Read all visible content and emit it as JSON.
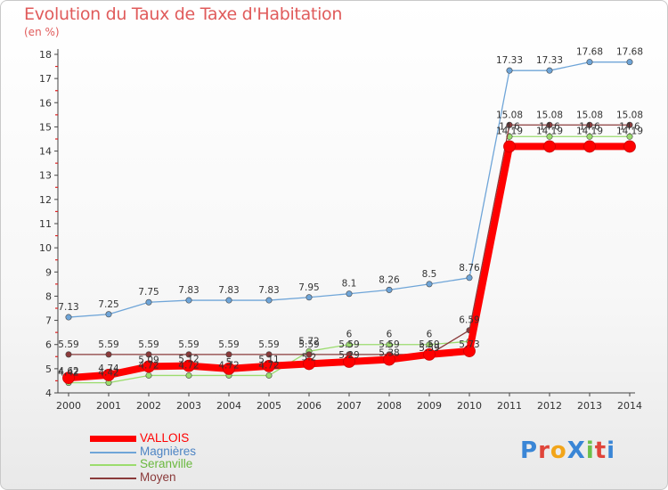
{
  "title": "Evolution du Taux de Taxe d'Habitation",
  "units": "(en %)",
  "logo": {
    "text": "ProXiti",
    "colors": [
      "#3a86d6",
      "#e0453a",
      "#f2a51a",
      "#3a86d6",
      "#6cc04a",
      "#e0453a",
      "#3a86d6"
    ]
  },
  "chart_data": {
    "type": "line",
    "x": [
      "2000",
      "2001",
      "2002",
      "2003",
      "2004",
      "2005",
      "2006",
      "2007",
      "2008",
      "2009",
      "2010",
      "2011",
      "2012",
      "2013",
      "2014"
    ],
    "ylim": [
      4,
      18
    ],
    "yticks": [
      "4",
      "5",
      "6",
      "7",
      "8",
      "9",
      "10",
      "11",
      "12",
      "13",
      "14",
      "15",
      "16",
      "17",
      "18"
    ],
    "grid": false,
    "legend_position": "bottom-left",
    "series": [
      {
        "name": "VALLOIS",
        "color": "#ff0000",
        "values": [
          4.62,
          4.74,
          5.09,
          5.12,
          5.0,
          5.11,
          5.2,
          5.29,
          5.38,
          5.59,
          5.73,
          14.19,
          14.19,
          14.19,
          14.19
        ],
        "labels": [
          "",
          "",
          "",
          "",
          "",
          "",
          "",
          "",
          "",
          "",
          "",
          "",
          "",
          "",
          ""
        ]
      },
      {
        "name": "Magnières",
        "color": "#6fa5d8",
        "values": [
          7.13,
          7.25,
          7.75,
          7.83,
          7.83,
          7.83,
          7.95,
          8.1,
          8.26,
          8.5,
          8.76,
          17.33,
          17.33,
          17.68,
          17.68
        ],
        "labels": [
          "7.13",
          "7.25",
          "7.75",
          "7.83",
          "7.83",
          "7.83",
          "7.95",
          "8.1",
          "8.26",
          "8.5",
          "8.76",
          "17.33",
          "17.33",
          "17.68",
          "17.68"
        ]
      },
      {
        "name": "Seranville",
        "color": "#9bdc6e",
        "values": [
          4.42,
          4.42,
          4.72,
          4.72,
          4.72,
          4.72,
          5.72,
          6,
          6,
          6,
          6.13,
          14.6,
          14.6,
          14.6,
          14.6
        ],
        "labels": [
          "4.42",
          "4.42",
          "4.72",
          "4.72",
          "4.72",
          "4.72",
          "5.72",
          "6",
          "6",
          "6",
          "",
          "14.6",
          "14.6",
          "14.6",
          "14.6"
        ]
      },
      {
        "name": "Moyen",
        "color": "#8a3a3a",
        "values": [
          5.59,
          5.59,
          5.59,
          5.59,
          5.59,
          5.59,
          5.59,
          5.59,
          5.59,
          5.59,
          6.59,
          15.08,
          15.08,
          15.08,
          15.08
        ],
        "labels": [
          "5.59",
          "5.59",
          "5.59",
          "5.59",
          "5.59",
          "5.59",
          "5.59",
          "5.59",
          "5.59",
          "5.59",
          "6.59",
          "15.08",
          "15.08",
          "15.08",
          "15.08"
        ]
      }
    ],
    "vallois_labels": [
      "4.62",
      "4.74",
      "5.09",
      "5.12",
      "5",
      "5.11",
      "5.2",
      "5.29",
      "5.38",
      "5.59",
      "5.73",
      "14.19",
      "14.19",
      "14.19",
      "14.19"
    ]
  }
}
